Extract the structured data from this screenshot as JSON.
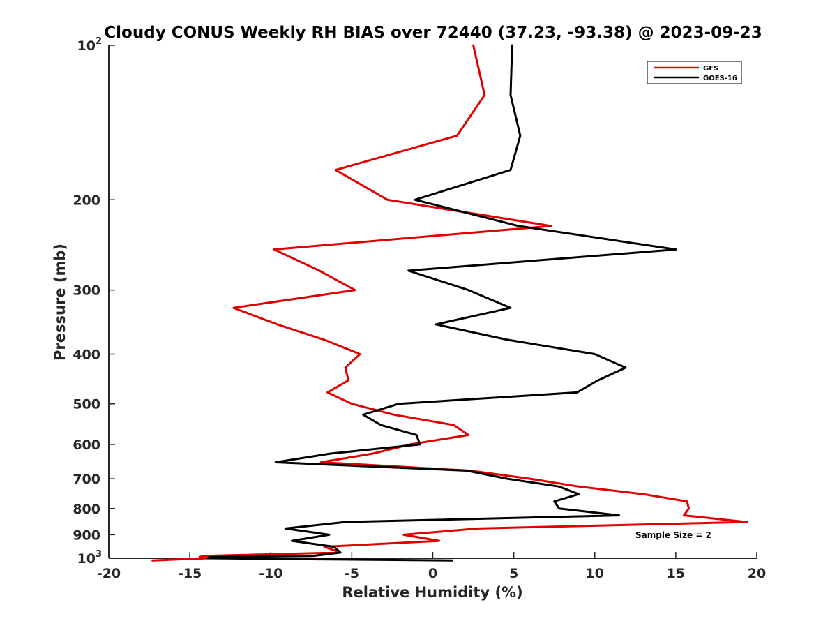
{
  "chart_data": {
    "type": "line",
    "title": "Cloudy CONUS Weekly RH BIAS over 72440 (37.23, -93.38) @ 2023-09-23",
    "xlabel": "Relative Humidity (%)",
    "ylabel": "Pressure (mb)",
    "xlim": [
      -20,
      20
    ],
    "ylim": [
      100,
      1000
    ],
    "yscale": "log",
    "y_reversed": true,
    "x_ticks": [
      "-20",
      "-15",
      "-10",
      "-5",
      "0",
      "5",
      "10",
      "15",
      "20"
    ],
    "y_ticks": [
      {
        "value": 100,
        "base": "10",
        "exp": "2"
      },
      {
        "value": 200,
        "label": "200"
      },
      {
        "value": 300,
        "label": "300"
      },
      {
        "value": 400,
        "label": "400"
      },
      {
        "value": 500,
        "label": "500"
      },
      {
        "value": 600,
        "label": "600"
      },
      {
        "value": 700,
        "label": "700"
      },
      {
        "value": 800,
        "label": "800"
      },
      {
        "value": 900,
        "label": "900"
      },
      {
        "value": 1000,
        "base": "10",
        "exp": "3"
      }
    ],
    "legend_position": "top-right",
    "annotation": "Sample Size = 2",
    "series": [
      {
        "name": "GFS",
        "color": "#e00000",
        "points": [
          [
            2.5,
            100
          ],
          [
            3.2,
            125
          ],
          [
            1.5,
            150
          ],
          [
            -6.0,
            175
          ],
          [
            -2.8,
            200
          ],
          [
            7.3,
            225
          ],
          [
            -9.8,
            250
          ],
          [
            -7.0,
            275
          ],
          [
            -4.8,
            300
          ],
          [
            -12.3,
            325
          ],
          [
            -9.6,
            350
          ],
          [
            -6.7,
            375
          ],
          [
            -4.5,
            400
          ],
          [
            -5.4,
            425
          ],
          [
            -5.2,
            450
          ],
          [
            -6.5,
            475
          ],
          [
            -5.0,
            500
          ],
          [
            -2.4,
            525
          ],
          [
            1.3,
            550
          ],
          [
            2.2,
            575
          ],
          [
            -1.4,
            600
          ],
          [
            -3.7,
            625
          ],
          [
            -6.9,
            650
          ],
          [
            2.3,
            675
          ],
          [
            6.0,
            700
          ],
          [
            9.0,
            725
          ],
          [
            13.0,
            750
          ],
          [
            15.7,
            775
          ],
          [
            15.8,
            800
          ],
          [
            15.5,
            825
          ],
          [
            19.4,
            850
          ],
          [
            2.8,
            875
          ],
          [
            -1.8,
            900
          ],
          [
            0.4,
            925
          ],
          [
            -6.7,
            950
          ],
          [
            -5.7,
            975
          ],
          [
            -14.2,
            990
          ],
          [
            -14.4,
            995
          ],
          [
            -13.8,
            1000
          ],
          [
            -17.3,
            1010
          ]
        ]
      },
      {
        "name": "GOES-16",
        "color": "#000000",
        "points": [
          [
            4.9,
            100
          ],
          [
            4.8,
            125
          ],
          [
            5.4,
            150
          ],
          [
            4.8,
            175
          ],
          [
            -1.1,
            200
          ],
          [
            5.3,
            225
          ],
          [
            15.0,
            250
          ],
          [
            -1.5,
            275
          ],
          [
            2.2,
            300
          ],
          [
            4.8,
            325
          ],
          [
            0.2,
            350
          ],
          [
            4.6,
            375
          ],
          [
            10.0,
            400
          ],
          [
            11.9,
            425
          ],
          [
            10.2,
            450
          ],
          [
            8.9,
            475
          ],
          [
            -2.1,
            500
          ],
          [
            -4.3,
            525
          ],
          [
            -3.2,
            550
          ],
          [
            -1.0,
            575
          ],
          [
            -0.8,
            600
          ],
          [
            -6.3,
            625
          ],
          [
            -9.7,
            650
          ],
          [
            2.1,
            675
          ],
          [
            4.6,
            700
          ],
          [
            7.8,
            725
          ],
          [
            9.0,
            750
          ],
          [
            7.5,
            775
          ],
          [
            7.8,
            800
          ],
          [
            11.5,
            825
          ],
          [
            -5.4,
            850
          ],
          [
            -9.1,
            875
          ],
          [
            -6.4,
            900
          ],
          [
            -8.7,
            925
          ],
          [
            -6.1,
            950
          ],
          [
            -5.7,
            975
          ],
          [
            -7.4,
            990
          ],
          [
            -13.7,
            995
          ],
          [
            -13.9,
            1000
          ],
          [
            -7.0,
            1005
          ],
          [
            1.2,
            1010
          ]
        ]
      }
    ]
  }
}
